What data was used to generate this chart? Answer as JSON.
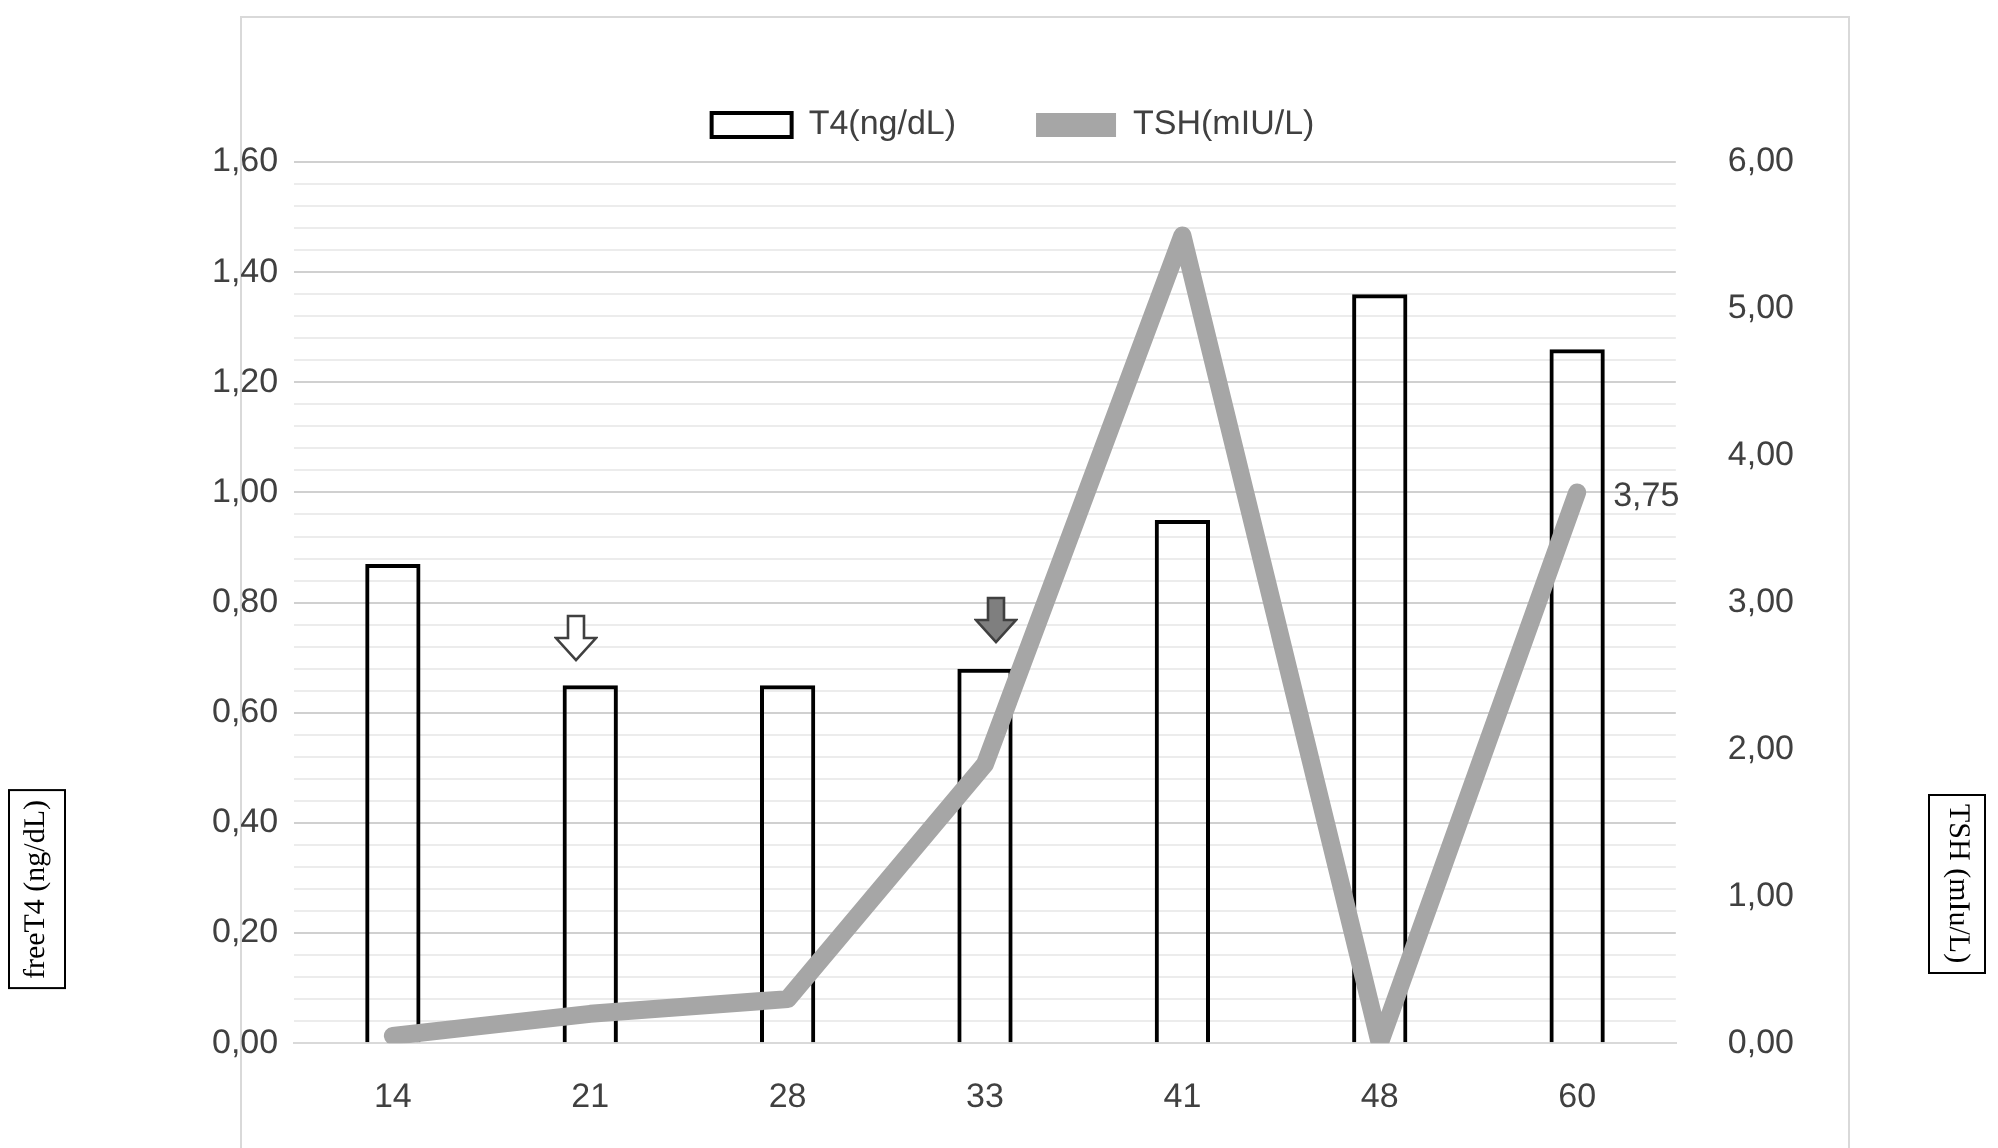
{
  "chart_data": {
    "type": "bar",
    "categories": [
      "14",
      "21",
      "28",
      "33",
      "41",
      "48",
      "60"
    ],
    "series": [
      {
        "name": "T4(ng/dL)",
        "color": "#000000",
        "values": [
          0.87,
          0.65,
          0.65,
          0.68,
          0.95,
          1.36,
          1.26
        ]
      },
      {
        "name": "TSH(mIU/L)",
        "type": "line",
        "axis": "y2",
        "color": "#a6a6a6",
        "values": [
          0.05,
          0.2,
          0.3,
          1.9,
          5.5,
          0,
          3.75
        ],
        "value_labels": [
          null,
          null,
          null,
          null,
          null,
          null,
          "3,75"
        ]
      }
    ],
    "annotations": [
      "freeT4 (ng/dL)",
      "TSH (mIu/L)"
    ],
    "ylim": [
      0,
      1.6
    ],
    "yticks": [
      {
        "value": 0,
        "label": "0,00"
      },
      {
        "value": 0.04,
        "label": null
      },
      {
        "value": 0.08,
        "label": null
      },
      {
        "value": 0.12,
        "label": null
      },
      {
        "value": 0.16,
        "label": null
      },
      {
        "value": 0.2,
        "label": "0,20"
      },
      {
        "value": 0.24,
        "label": null
      },
      {
        "value": 0.28,
        "label": null
      },
      {
        "value": 0.32,
        "label": null
      },
      {
        "value": 0.36,
        "label": null
      },
      {
        "value": 0.4,
        "label": "0,40"
      },
      {
        "value": 0.44,
        "label": null
      },
      {
        "value": 0.48,
        "label": null
      },
      {
        "value": 0.52,
        "label": null
      },
      {
        "value": 0.56,
        "label": null
      },
      {
        "value": 0.6,
        "label": "0,60"
      },
      {
        "value": 0.64,
        "label": null
      },
      {
        "value": 0.68,
        "label": null
      },
      {
        "value": 0.72,
        "label": null
      },
      {
        "value": 0.76,
        "label": null
      },
      {
        "value": 0.8,
        "label": "0,80"
      },
      {
        "value": 0.84,
        "label": null
      },
      {
        "value": 0.88,
        "label": null
      },
      {
        "value": 0.92,
        "label": null
      },
      {
        "value": 0.96,
        "label": null
      },
      {
        "value": 1.0,
        "label": "1,00"
      },
      {
        "value": 1.04,
        "label": null
      },
      {
        "value": 1.08,
        "label": null
      },
      {
        "value": 1.12,
        "label": null
      },
      {
        "value": 1.16,
        "label": null
      },
      {
        "value": 1.2,
        "label": "1,20"
      },
      {
        "value": 1.24,
        "label": null
      },
      {
        "value": 1.28,
        "label": null
      },
      {
        "value": 1.32,
        "label": null
      },
      {
        "value": 1.36,
        "label": null
      },
      {
        "value": 1.4,
        "label": "1,40"
      },
      {
        "value": 1.44,
        "label": null
      },
      {
        "value": 1.48,
        "label": null
      },
      {
        "value": 1.52,
        "label": null
      },
      {
        "value": 1.56,
        "label": null
      },
      {
        "value": 1.6,
        "label": "1,60"
      }
    ],
    "y2lim": [
      0,
      6
    ],
    "y2ticks": [
      {
        "value": 0,
        "label": "0,00"
      },
      {
        "value": 1,
        "label": "1,00"
      },
      {
        "value": 2,
        "label": "2,00"
      },
      {
        "value": 3,
        "label": "3,00"
      },
      {
        "value": 4,
        "label": "4,00"
      },
      {
        "value": 5,
        "label": "5,00"
      },
      {
        "value": 6,
        "label": "6,00"
      }
    ],
    "grid": "y",
    "legend": "top"
  }
}
